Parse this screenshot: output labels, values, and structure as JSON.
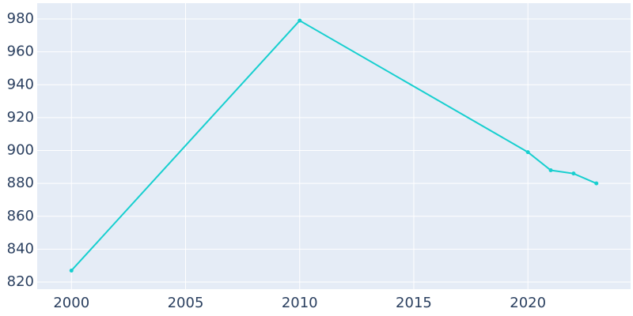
{
  "chart_data": {
    "type": "line",
    "x": [
      2000,
      2010,
      2020,
      2021,
      2022,
      2023
    ],
    "values": [
      827,
      979,
      899,
      888,
      886,
      880
    ],
    "color": "#17cfcf",
    "xlim": [
      1998.5,
      2024.5
    ],
    "xticks": [
      2000,
      2005,
      2010,
      2015,
      2020
    ],
    "ylim": [
      815.7,
      989.6
    ],
    "yticks": [
      820,
      840,
      860,
      880,
      900,
      920,
      940,
      960,
      980
    ],
    "grid": true
  }
}
